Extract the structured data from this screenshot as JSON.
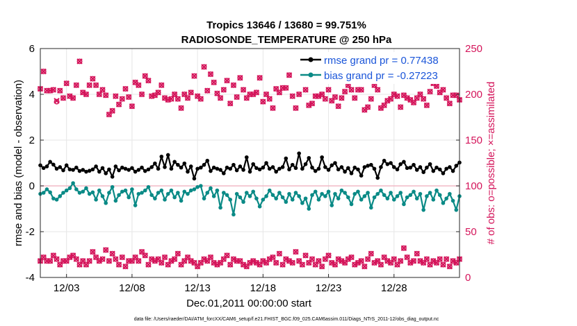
{
  "figure": {
    "title_line1": "Tropics 13646 / 13680 = 99.751%",
    "title_line2": "RADIOSONDE_TEMPERATURE @ 250 hPa",
    "footer": "data file: /Users/raeder/DAI/ATM_forcXX/CAM6_setup/f.e21.FHIST_BGC.f09_025.CAM6assim.011/Diags_NTrS_2011-12/obs_diag_output.nc"
  },
  "chart_data": {
    "type": "line",
    "title": "Tropics 13646 / 13680 = 99.751%",
    "subtitle": "RADIOSONDE_TEMPERATURE @ 250 hPa",
    "xlabel": "Dec.01,2011 00:00:00 start",
    "ylabel": "rmse and bias (model - observation)",
    "ylabel_right": "# of obs: o=possible; ×=assimilated",
    "xlim": [
      1,
      33
    ],
    "x_ticks": [
      3,
      8,
      13,
      18,
      23,
      28
    ],
    "x_tick_labels": [
      "12/03",
      "12/08",
      "12/13",
      "12/18",
      "12/23",
      "12/28"
    ],
    "ylim": [
      -4,
      6
    ],
    "y_ticks": [
      -4,
      -2,
      0,
      2,
      4,
      6
    ],
    "ylim_right": [
      0,
      250
    ],
    "y_ticks_right": [
      0,
      50,
      100,
      150,
      200,
      250
    ],
    "x_start": 1,
    "x_step": 0.25,
    "grid": true,
    "legend_position": "top-right",
    "colors": {
      "rmse": "#000000",
      "bias": "#0a8a86",
      "obs": "#d4145a",
      "zero": "#f2b8c6",
      "legend_text": "#1a55d9"
    },
    "series": [
      {
        "name": "rmse grand pr = 0.77438",
        "axis": "left",
        "values": [
          0.9,
          0.78,
          0.85,
          1.05,
          0.93,
          0.75,
          0.82,
          0.68,
          0.9,
          0.72,
          0.7,
          0.8,
          0.65,
          0.7,
          0.62,
          0.66,
          0.72,
          0.85,
          0.62,
          0.78,
          0.55,
          0.72,
          0.4,
          0.85,
          0.68,
          0.8,
          0.75,
          0.7,
          0.78,
          0.62,
          0.7,
          0.8,
          0.65,
          0.72,
          0.82,
          0.98,
          0.75,
          1.28,
          0.82,
          1.35,
          0.75,
          1.05,
          0.92,
          0.8,
          0.98,
          0.62,
          0.85,
          0.32,
          0.75,
          0.8,
          0.92,
          1.1,
          0.65,
          0.8,
          0.75,
          0.7,
          0.55,
          0.8,
          0.75,
          0.92,
          0.68,
          0.85,
          0.7,
          1.25,
          0.62,
          0.95,
          0.78,
          0.72,
          0.8,
          1.0,
          0.75,
          0.82,
          0.62,
          0.75,
          0.82,
          1.2,
          0.72,
          0.92,
          0.78,
          1.42,
          0.75,
          0.95,
          1.22,
          0.8,
          0.65,
          0.75,
          1.25,
          0.82,
          0.7,
          0.9,
          1.0,
          0.72,
          0.82,
          0.62,
          0.78,
          0.55,
          0.8,
          0.72,
          0.45,
          0.82,
          0.88,
          0.92,
          0.75,
          0.35,
          0.82,
          1.1,
          0.95,
          1.0,
          0.82,
          0.72,
          0.95,
          1.05,
          0.78,
          0.8,
          0.92,
          0.7,
          0.82,
          0.6,
          0.8,
          0.95,
          0.65,
          0.8,
          0.72,
          0.55,
          0.75,
          0.82,
          0.65,
          0.88,
          1.02,
          0.8,
          0.65,
          0.72,
          0.78,
          0.85,
          0.65,
          1.0,
          0.75,
          1.45,
          0.75,
          0.8,
          0.95,
          0.62,
          0.82,
          0.92,
          0.75,
          0.88,
          0.72,
          0.9,
          0.68,
          0.8,
          0.95,
          0.72,
          0.85,
          0.7,
          0.6,
          0.95,
          1.0,
          0.9,
          1.0,
          0.78,
          0.88,
          1.05,
          0.92,
          0.9,
          0.78,
          1.0,
          1.25,
          1.38
        ]
      },
      {
        "name": "bias grand pr = -0.27223",
        "axis": "left",
        "values": [
          -0.35,
          -0.3,
          -0.15,
          -0.28,
          -0.55,
          -0.6,
          -0.45,
          -0.3,
          -0.2,
          -0.1,
          0.12,
          -0.15,
          -0.3,
          -0.25,
          -0.1,
          -0.35,
          -0.28,
          -0.6,
          -0.2,
          -0.45,
          -0.75,
          -0.3,
          -0.05,
          -0.65,
          -0.4,
          -0.25,
          -0.2,
          -0.5,
          -0.15,
          -0.85,
          -0.35,
          -0.3,
          -0.2,
          -0.05,
          -0.4,
          -0.55,
          -0.3,
          -0.2,
          -0.6,
          -0.35,
          -0.2,
          -0.5,
          -0.3,
          -0.65,
          -0.25,
          -0.35,
          -0.2,
          -0.15,
          -0.05,
          0.0,
          -0.55,
          -0.3,
          -0.1,
          -0.45,
          -0.2,
          -0.95,
          -0.3,
          -0.4,
          -0.6,
          -1.25,
          -0.35,
          -0.5,
          -0.7,
          -0.3,
          -0.45,
          -0.25,
          -0.55,
          -0.9,
          -0.6,
          -0.45,
          -0.2,
          -0.4,
          -0.55,
          -0.3,
          -0.5,
          -0.7,
          -0.35,
          -0.6,
          -0.3,
          -0.45,
          -0.75,
          -0.55,
          -1.0,
          -0.4,
          -0.25,
          -0.6,
          -0.35,
          -0.45,
          -0.25,
          -0.85,
          -0.35,
          -0.55,
          -0.2,
          -0.3,
          -0.5,
          -0.8,
          -0.35,
          -0.25,
          -0.6,
          -0.45,
          -0.3,
          -0.95,
          -0.5,
          -0.35,
          -0.2,
          -0.4,
          -0.55,
          -0.3,
          -0.6,
          -0.45,
          -0.3,
          -0.8,
          -0.5,
          -0.4,
          -0.25,
          -0.55,
          -0.35,
          -1.05,
          -0.45,
          -0.3,
          -0.6,
          -0.2,
          -0.4,
          -0.75,
          -0.55,
          -0.35,
          -0.65,
          -1.05,
          -0.45,
          -0.3,
          -0.5,
          -0.4,
          -0.25,
          -0.6,
          -0.95,
          -0.35,
          -0.55,
          -0.3,
          -0.45,
          -0.65,
          -0.25,
          -0.5,
          -0.8,
          -0.4,
          -0.35,
          -0.55,
          -0.9,
          -0.3,
          -0.6,
          -0.45,
          -0.35,
          -0.7,
          -0.25,
          -0.5,
          -0.4,
          -0.65,
          -1.05,
          -0.55,
          -0.45,
          -0.3,
          -0.6,
          -0.35,
          -0.55,
          -0.75,
          -0.45,
          -0.85,
          -0.45,
          -0.6,
          -0.95
        ]
      },
      {
        "name": "# obs possible",
        "axis": "right",
        "marker": "o",
        "values": [
          206,
          225,
          204,
          204,
          205,
          192,
          204,
          196,
          212,
          198,
          196,
          210,
          236,
          202,
          200,
          210,
          217,
          210,
          200,
          205,
          199,
          178,
          182,
          198,
          189,
          195,
          206,
          197,
          187,
          213,
          210,
          200,
          220,
          215,
          198,
          199,
          202,
          210,
          196,
          194,
          195,
          200,
          195,
          185,
          200,
          196,
          202,
          220,
          198,
          195,
          230,
          204,
          222,
          213,
          201,
          196,
          205,
          215,
          190,
          210,
          197,
          218,
          205,
          196,
          200,
          200,
          202,
          218,
          192,
          200,
          195,
          185,
          206,
          202,
          207,
          207,
          221,
          198,
          185,
          200,
          218,
          205,
          188,
          190,
          198,
          198,
          200,
          195,
          205,
          193,
          197,
          187,
          196,
          203,
          210,
          205,
          196,
          205,
          205,
          183,
          186,
          195,
          210,
          205,
          185,
          188,
          193,
          195,
          200,
          198,
          186,
          199,
          196,
          194,
          191,
          196,
          200,
          195,
          188,
          203,
          212,
          209,
          202,
          205,
          196,
          190,
          199,
          199,
          194,
          198,
          207,
          190,
          200,
          200,
          212,
          196,
          190,
          193,
          204,
          185,
          199,
          188,
          193,
          193,
          200,
          203,
          192,
          200,
          198,
          207,
          202,
          195,
          182,
          188,
          206,
          194,
          190,
          187,
          193,
          196,
          185,
          196,
          195,
          185,
          194,
          197,
          195,
          198,
          190,
          186
        ]
      },
      {
        "name": "# obs assimilated",
        "axis": "right",
        "marker": "x",
        "values": [
          206,
          225,
          204,
          204,
          205,
          193,
          204,
          196,
          212,
          198,
          196,
          210,
          236,
          202,
          200,
          210,
          217,
          210,
          200,
          205,
          199,
          178,
          182,
          198,
          189,
          195,
          206,
          197,
          187,
          213,
          210,
          200,
          220,
          215,
          198,
          199,
          202,
          210,
          196,
          194,
          195,
          200,
          195,
          185,
          200,
          196,
          202,
          220,
          198,
          195,
          230,
          204,
          222,
          213,
          201,
          196,
          205,
          215,
          190,
          210,
          197,
          218,
          205,
          196,
          200,
          200,
          202,
          218,
          192,
          200,
          195,
          185,
          206,
          202,
          207,
          207,
          221,
          198,
          185,
          200,
          218,
          205,
          188,
          190,
          198,
          198,
          200,
          195,
          205,
          193,
          197,
          187,
          196,
          203,
          210,
          205,
          196,
          205,
          205,
          183,
          186,
          195,
          210,
          205,
          185,
          188,
          193,
          195,
          200,
          198,
          186,
          199,
          196,
          194,
          191,
          196,
          200,
          195,
          188,
          203,
          212,
          209,
          202,
          205,
          196,
          190,
          199,
          199,
          194,
          198,
          207,
          190,
          200,
          200,
          212,
          196,
          190,
          193,
          204,
          185,
          199,
          188,
          193,
          193,
          200,
          203,
          192,
          200,
          198,
          207,
          202,
          195,
          182,
          188,
          206,
          194,
          190,
          187,
          193,
          196,
          185,
          196,
          195,
          185,
          194,
          197,
          195,
          198,
          190,
          186
        ]
      },
      {
        "name": "# obs possible (second cluster)",
        "axis": "right",
        "marker": "o",
        "values": [
          18,
          22,
          18,
          18,
          24,
          20,
          14,
          18,
          18,
          22,
          24,
          20,
          14,
          18,
          14,
          18,
          28,
          22,
          18,
          20,
          30,
          18,
          26,
          20,
          14,
          22,
          12,
          18,
          18,
          22,
          18,
          28,
          24,
          14,
          20,
          18,
          20,
          16,
          22,
          14,
          18,
          20,
          26,
          14,
          18,
          22,
          18,
          16,
          12,
          16,
          20,
          18,
          22,
          16,
          14,
          16,
          20,
          24,
          14,
          20,
          18,
          18,
          14,
          12,
          16,
          18,
          16,
          14,
          18,
          16,
          20,
          22,
          16,
          26,
          14,
          20,
          18,
          16,
          28,
          18,
          14,
          24,
          16,
          20,
          14,
          18,
          12,
          20,
          24,
          16,
          14,
          20,
          18,
          16,
          20,
          22,
          14,
          16,
          18,
          12,
          20,
          26,
          16,
          18,
          14,
          22,
          18,
          16,
          20,
          14,
          18,
          32,
          22,
          16,
          18,
          26,
          18,
          16,
          20,
          14,
          18,
          16,
          20,
          14,
          20,
          12,
          18,
          16,
          20,
          16,
          14,
          18,
          16,
          20,
          18,
          22,
          14,
          16,
          18,
          20,
          18,
          16,
          32,
          22,
          18,
          16,
          18,
          20,
          14,
          18,
          16,
          22,
          18,
          20,
          14,
          16,
          18,
          14,
          18,
          22,
          20,
          18,
          20,
          28,
          34,
          18,
          20,
          18,
          16,
          0
        ]
      },
      {
        "name": "# obs assimilated (second cluster)",
        "axis": "right",
        "marker": "x",
        "values": [
          18,
          22,
          18,
          18,
          24,
          20,
          14,
          18,
          18,
          22,
          24,
          20,
          14,
          18,
          14,
          18,
          28,
          22,
          18,
          20,
          30,
          18,
          26,
          20,
          14,
          22,
          12,
          18,
          18,
          22,
          18,
          28,
          24,
          14,
          20,
          18,
          20,
          16,
          22,
          14,
          18,
          20,
          26,
          14,
          18,
          22,
          18,
          16,
          12,
          16,
          20,
          18,
          22,
          16,
          14,
          16,
          20,
          24,
          14,
          20,
          18,
          18,
          14,
          12,
          16,
          18,
          16,
          14,
          18,
          16,
          20,
          22,
          16,
          26,
          14,
          20,
          18,
          16,
          28,
          18,
          14,
          24,
          16,
          20,
          14,
          18,
          12,
          20,
          24,
          16,
          14,
          20,
          18,
          16,
          20,
          22,
          14,
          16,
          18,
          12,
          20,
          26,
          16,
          18,
          14,
          22,
          18,
          16,
          20,
          14,
          18,
          32,
          22,
          16,
          18,
          26,
          18,
          16,
          20,
          14,
          18,
          16,
          20,
          14,
          20,
          12,
          18,
          16,
          20,
          16,
          14,
          18,
          16,
          20,
          18,
          22,
          14,
          16,
          18,
          20,
          18,
          16,
          32,
          22,
          18,
          16,
          18,
          20,
          14,
          18,
          16,
          22,
          18,
          20,
          14,
          16,
          18,
          14,
          18,
          22,
          20,
          18,
          20,
          28,
          34,
          18,
          20,
          18,
          16,
          0
        ]
      }
    ]
  }
}
